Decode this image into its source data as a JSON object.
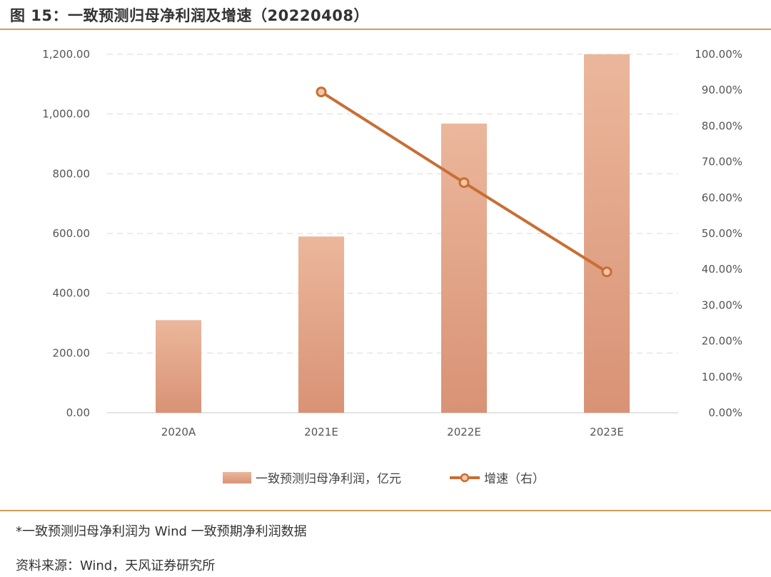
{
  "header": {
    "title": "图 15：一致预测归母净利润及增速（20220408）"
  },
  "footer": {
    "note": "*一致预测归母净利润为 Wind 一致预期净利润数据",
    "source": "资料来源：Wind，天风证券研究所"
  },
  "colors": {
    "bar": "#E8A887",
    "bar_top": "#EBB79C",
    "bar_bottom": "#D99275",
    "line": "#C86E35",
    "marker_fill": "#F3C6A6",
    "rule": "#D89A5B"
  },
  "chart_data": {
    "type": "bar+line",
    "title": "图 15：一致预测归母净利润及增速（20220408）",
    "categories": [
      "2020A",
      "2021E",
      "2022E",
      "2023E"
    ],
    "series": [
      {
        "name": "一致预测归母净利润，亿元",
        "type": "bar",
        "axis": "left",
        "values": [
          310,
          590,
          968,
          1200
        ]
      },
      {
        "name": "增速（右）",
        "type": "line",
        "axis": "right",
        "values": [
          null,
          89.5,
          64.2,
          39.3
        ]
      }
    ],
    "left_axis": {
      "ylim": [
        0,
        1200
      ],
      "ticks": [
        "0.00",
        "200.00",
        "400.00",
        "600.00",
        "800.00",
        "1,000.00",
        "1,200.00"
      ]
    },
    "right_axis": {
      "ylim": [
        0,
        100
      ],
      "ticks": [
        "0.00%",
        "10.00%",
        "20.00%",
        "30.00%",
        "40.00%",
        "50.00%",
        "60.00%",
        "70.00%",
        "80.00%",
        "90.00%",
        "100.00%"
      ]
    },
    "legend": {
      "placement": "bottom",
      "entries": [
        "一致预测归母净利润，亿元",
        "增速（右）"
      ]
    },
    "grid": true
  }
}
